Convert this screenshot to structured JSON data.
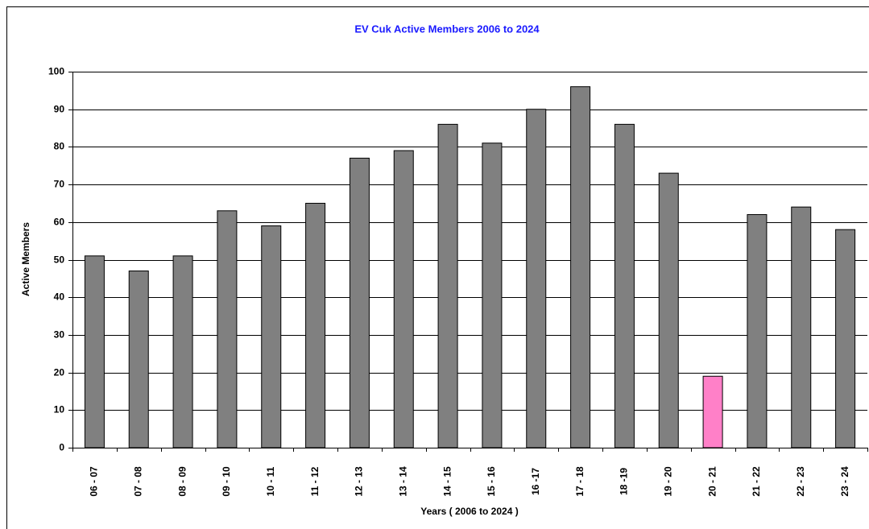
{
  "chart_data": {
    "type": "bar",
    "title": "EV Cuk Active Members 2006 to 2024",
    "x_label": "Years ( 2006 to 2024 )",
    "y_label": "Active Members",
    "categories": [
      "06 - 07",
      "07 - 08",
      "08 - 09",
      "09 - 10",
      "10 - 11",
      "11 - 12",
      "12 - 13",
      "13 - 14",
      "14 - 15",
      "15 - 16",
      "16 -17",
      "17 - 18",
      "18 -19",
      "19 - 20",
      "20 - 21",
      "21 - 22",
      "22 - 23",
      "23 - 24"
    ],
    "values": [
      51,
      47,
      51,
      63,
      59,
      65,
      77,
      79,
      86,
      81,
      90,
      96,
      86,
      73,
      19,
      62,
      64,
      58
    ],
    "colors": [
      "#808080",
      "#808080",
      "#808080",
      "#808080",
      "#808080",
      "#808080",
      "#808080",
      "#808080",
      "#808080",
      "#808080",
      "#808080",
      "#808080",
      "#808080",
      "#808080",
      "#ff80c8",
      "#808080",
      "#808080",
      "#808080"
    ],
    "ylim": [
      0,
      100
    ],
    "yticks": [
      0,
      10,
      20,
      30,
      40,
      50,
      60,
      70,
      80,
      90,
      100
    ],
    "grid": true
  }
}
